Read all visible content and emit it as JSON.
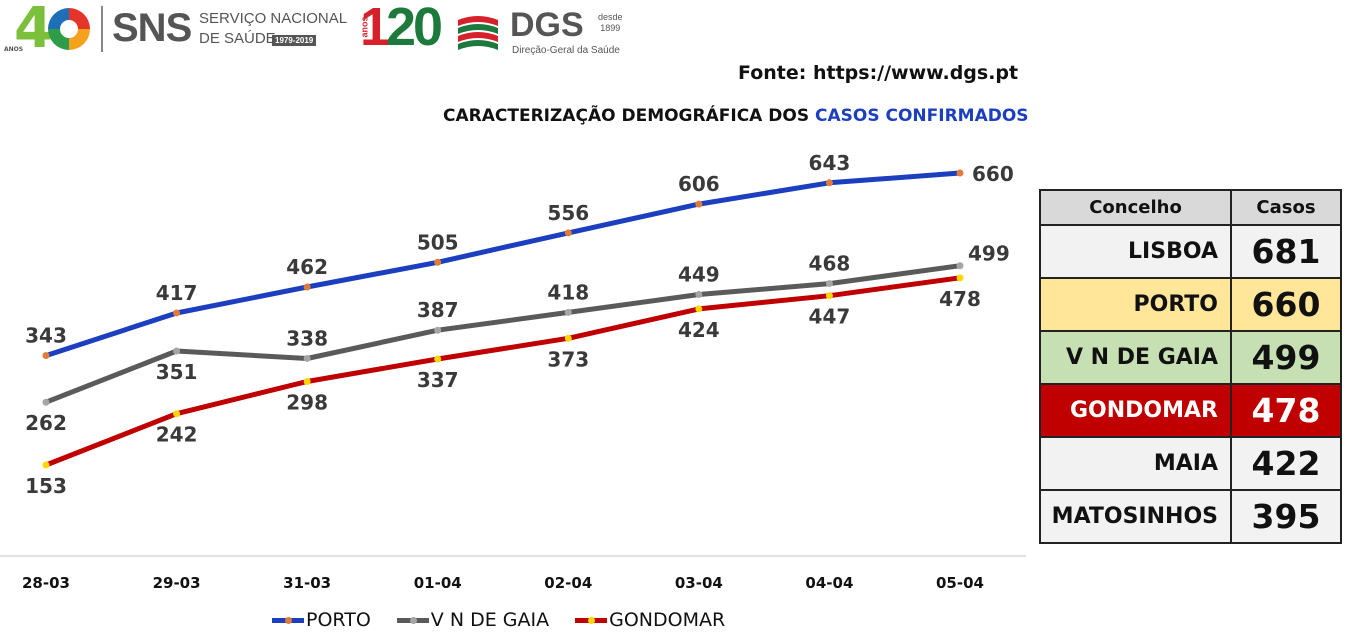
{
  "header": {
    "logo40_text": "40",
    "logo40_anos": "ANOS",
    "sns": "SNS",
    "sns_line1": "SERVIÇO NACIONAL",
    "sns_line2": "DE SAÚDE",
    "sns_years": "1979-2019",
    "logo120_one": "1",
    "logo120_twenty": "20",
    "logo120_anos": "anos",
    "dgs": "DGS",
    "dgs_desde": "desde",
    "dgs_year": "1899",
    "dgs_sub": "Direção-Geral da Saúde"
  },
  "source": "Fonte: https://www.dgs.pt",
  "title_part1": "CARACTERIZAÇÃO DEMOGRÁFICA DOS ",
  "title_part2": "CASOS CONFIRMADOS",
  "colors": {
    "porto": "#1c3fbf",
    "gaia": "#5a5a5a",
    "gondomar": "#c00000",
    "dot_porto": "#e07b39",
    "dot_gaia": "#a5a5a5",
    "dot_gondomar": "#ffd700",
    "title_highlight": "#1c3fbf"
  },
  "chart_data": {
    "type": "line",
    "categories": [
      "28-03",
      "29-03",
      "31-03",
      "01-04",
      "02-04",
      "03-04",
      "04-04",
      "05-04"
    ],
    "series": [
      {
        "name": "PORTO",
        "values": [
          343,
          417,
          462,
          505,
          556,
          606,
          643,
          660
        ]
      },
      {
        "name": "V N DE GAIA",
        "values": [
          262,
          351,
          338,
          387,
          418,
          449,
          468,
          499
        ]
      },
      {
        "name": "GONDOMAR",
        "values": [
          153,
          242,
          298,
          337,
          373,
          424,
          447,
          478
        ]
      }
    ],
    "title": "CARACTERIZAÇÃO DEMOGRÁFICA DOS CASOS CONFIRMADOS",
    "legend_position": "bottom",
    "grid": false
  },
  "table": {
    "header_concelho": "Concelho",
    "header_casos": "Casos",
    "rows": [
      {
        "name": "LISBOA",
        "value": "681",
        "bg": "#f2f2f2",
        "fg": "#111111"
      },
      {
        "name": "PORTO",
        "value": "660",
        "bg": "#ffe699",
        "fg": "#111111"
      },
      {
        "name": "V N DE GAIA",
        "value": "499",
        "bg": "#c6e0b4",
        "fg": "#111111"
      },
      {
        "name": "GONDOMAR",
        "value": "478",
        "bg": "#c00000",
        "fg": "#ffffff"
      },
      {
        "name": "MAIA",
        "value": "422",
        "bg": "#f2f2f2",
        "fg": "#111111"
      },
      {
        "name": "MATOSINHOS",
        "value": "395",
        "bg": "#f2f2f2",
        "fg": "#111111"
      }
    ]
  }
}
